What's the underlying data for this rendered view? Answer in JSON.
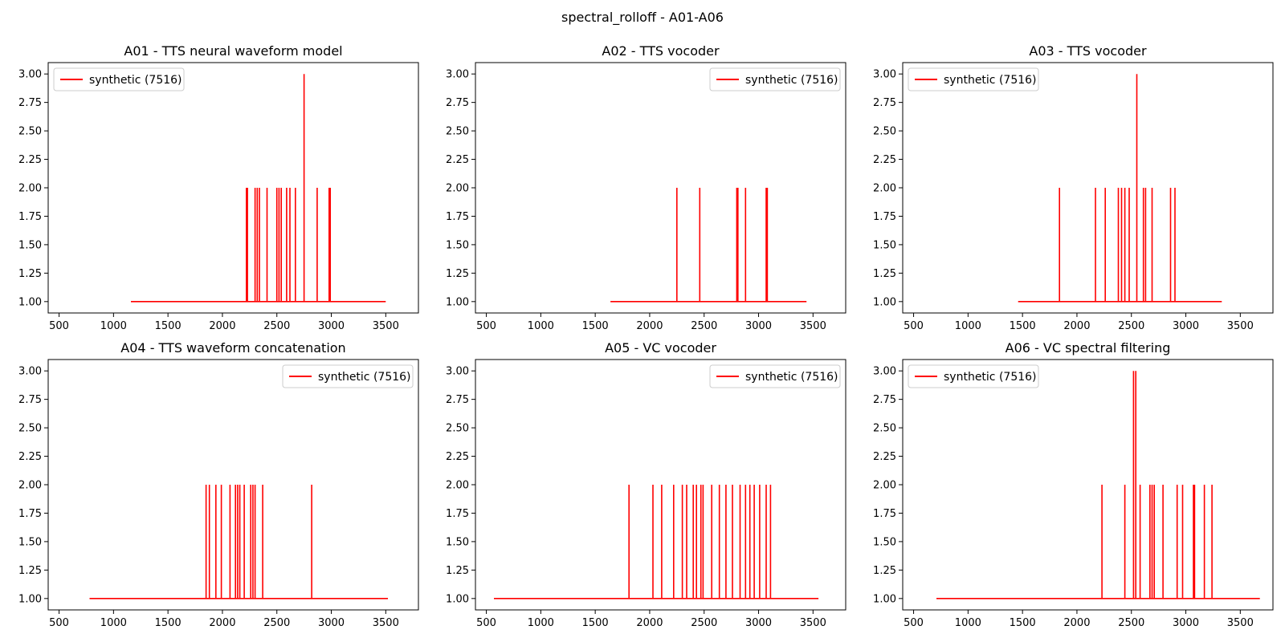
{
  "figure": {
    "title": "spectral_rolloff - A01-A06"
  },
  "chart_data": [
    {
      "type": "line",
      "title": "A01 - TTS neural waveform model",
      "xlim": [
        400,
        3800
      ],
      "ylim": [
        0.9,
        3.1
      ],
      "xticks": [
        500,
        1000,
        1500,
        2000,
        2500,
        3000,
        3500
      ],
      "yticks": [
        "1.00",
        "1.25",
        "1.50",
        "1.75",
        "2.00",
        "2.25",
        "2.50",
        "2.75",
        "3.00"
      ],
      "legend_loc": "upper-left",
      "color": "#ff0000",
      "series": [
        {
          "name": "synthetic (7516)",
          "baseline": 1,
          "start": 1160,
          "end": 3500,
          "spikes": [
            [
              2220,
              2
            ],
            [
              2230,
              2
            ],
            [
              2300,
              2
            ],
            [
              2320,
              2
            ],
            [
              2340,
              2
            ],
            [
              2410,
              2
            ],
            [
              2500,
              2
            ],
            [
              2520,
              2
            ],
            [
              2540,
              2
            ],
            [
              2590,
              2
            ],
            [
              2620,
              2
            ],
            [
              2670,
              2
            ],
            [
              2750,
              3
            ],
            [
              2870,
              2
            ],
            [
              2980,
              2
            ],
            [
              2990,
              2
            ]
          ]
        }
      ]
    },
    {
      "type": "line",
      "title": "A02 - TTS vocoder",
      "xlim": [
        400,
        3800
      ],
      "ylim": [
        0.9,
        3.1
      ],
      "xticks": [
        500,
        1000,
        1500,
        2000,
        2500,
        3000,
        3500
      ],
      "yticks": [
        "1.00",
        "1.25",
        "1.50",
        "1.75",
        "2.00",
        "2.25",
        "2.50",
        "2.75",
        "3.00"
      ],
      "legend_loc": "upper-right",
      "color": "#ff0000",
      "series": [
        {
          "name": "synthetic (7516)",
          "baseline": 1,
          "start": 1640,
          "end": 3440,
          "spikes": [
            [
              2250,
              2
            ],
            [
              2460,
              2
            ],
            [
              2800,
              2
            ],
            [
              2810,
              2
            ],
            [
              2880,
              2
            ],
            [
              3070,
              2
            ],
            [
              3080,
              2
            ]
          ]
        }
      ]
    },
    {
      "type": "line",
      "title": "A03 - TTS vocoder",
      "xlim": [
        400,
        3800
      ],
      "ylim": [
        0.9,
        3.1
      ],
      "xticks": [
        500,
        1000,
        1500,
        2000,
        2500,
        3000,
        3500
      ],
      "yticks": [
        "1.00",
        "1.25",
        "1.50",
        "1.75",
        "2.00",
        "2.25",
        "2.50",
        "2.75",
        "3.00"
      ],
      "legend_loc": "upper-left",
      "color": "#ff0000",
      "series": [
        {
          "name": "synthetic (7516)",
          "baseline": 1,
          "start": 1460,
          "end": 3330,
          "spikes": [
            [
              1840,
              2
            ],
            [
              2170,
              2
            ],
            [
              2260,
              2
            ],
            [
              2380,
              2
            ],
            [
              2410,
              2
            ],
            [
              2440,
              2
            ],
            [
              2480,
              2
            ],
            [
              2550,
              3
            ],
            [
              2610,
              2
            ],
            [
              2630,
              2
            ],
            [
              2690,
              2
            ],
            [
              2860,
              2
            ],
            [
              2900,
              2
            ]
          ]
        }
      ]
    },
    {
      "type": "line",
      "title": "A04 - TTS waveform concatenation",
      "xlim": [
        400,
        3800
      ],
      "ylim": [
        0.9,
        3.1
      ],
      "xticks": [
        500,
        1000,
        1500,
        2000,
        2500,
        3000,
        3500
      ],
      "yticks": [
        "1.00",
        "1.25",
        "1.50",
        "1.75",
        "2.00",
        "2.25",
        "2.50",
        "2.75",
        "3.00"
      ],
      "legend_loc": "upper-right",
      "color": "#ff0000",
      "series": [
        {
          "name": "synthetic (7516)",
          "baseline": 1,
          "start": 780,
          "end": 3520,
          "spikes": [
            [
              1850,
              2
            ],
            [
              1880,
              2
            ],
            [
              1940,
              2
            ],
            [
              1990,
              2
            ],
            [
              2070,
              2
            ],
            [
              2120,
              2
            ],
            [
              2140,
              2
            ],
            [
              2160,
              2
            ],
            [
              2200,
              2
            ],
            [
              2260,
              2
            ],
            [
              2280,
              2
            ],
            [
              2300,
              2
            ],
            [
              2370,
              2
            ],
            [
              2820,
              2
            ]
          ]
        }
      ]
    },
    {
      "type": "line",
      "title": "A05 - VC vocoder",
      "xlim": [
        400,
        3800
      ],
      "ylim": [
        0.9,
        3.1
      ],
      "xticks": [
        500,
        1000,
        1500,
        2000,
        2500,
        3000,
        3500
      ],
      "yticks": [
        "1.00",
        "1.25",
        "1.50",
        "1.75",
        "2.00",
        "2.25",
        "2.50",
        "2.75",
        "3.00"
      ],
      "legend_loc": "upper-right",
      "color": "#ff0000",
      "series": [
        {
          "name": "synthetic (7516)",
          "baseline": 1,
          "start": 570,
          "end": 3550,
          "spikes": [
            [
              1810,
              2
            ],
            [
              2030,
              2
            ],
            [
              2110,
              2
            ],
            [
              2220,
              2
            ],
            [
              2300,
              2
            ],
            [
              2340,
              2
            ],
            [
              2400,
              2
            ],
            [
              2430,
              2
            ],
            [
              2470,
              2
            ],
            [
              2490,
              2
            ],
            [
              2570,
              2
            ],
            [
              2640,
              2
            ],
            [
              2700,
              2
            ],
            [
              2760,
              2
            ],
            [
              2830,
              2
            ],
            [
              2880,
              2
            ],
            [
              2920,
              2
            ],
            [
              2960,
              2
            ],
            [
              3010,
              2
            ],
            [
              3070,
              2
            ],
            [
              3110,
              2
            ]
          ]
        }
      ]
    },
    {
      "type": "line",
      "title": "A06 - VC spectral filtering",
      "xlim": [
        400,
        3800
      ],
      "ylim": [
        0.9,
        3.1
      ],
      "xticks": [
        500,
        1000,
        1500,
        2000,
        2500,
        3000,
        3500
      ],
      "yticks": [
        "1.00",
        "1.25",
        "1.50",
        "1.75",
        "2.00",
        "2.25",
        "2.50",
        "2.75",
        "3.00"
      ],
      "legend_loc": "upper-left",
      "color": "#ff0000",
      "series": [
        {
          "name": "synthetic (7516)",
          "baseline": 1,
          "start": 710,
          "end": 3680,
          "spikes": [
            [
              2230,
              2
            ],
            [
              2440,
              2
            ],
            [
              2520,
              3
            ],
            [
              2540,
              3
            ],
            [
              2580,
              2
            ],
            [
              2670,
              2
            ],
            [
              2690,
              2
            ],
            [
              2710,
              2
            ],
            [
              2790,
              2
            ],
            [
              2920,
              2
            ],
            [
              2970,
              2
            ],
            [
              3070,
              2
            ],
            [
              3080,
              2
            ],
            [
              3170,
              2
            ],
            [
              3240,
              2
            ]
          ]
        }
      ]
    }
  ]
}
